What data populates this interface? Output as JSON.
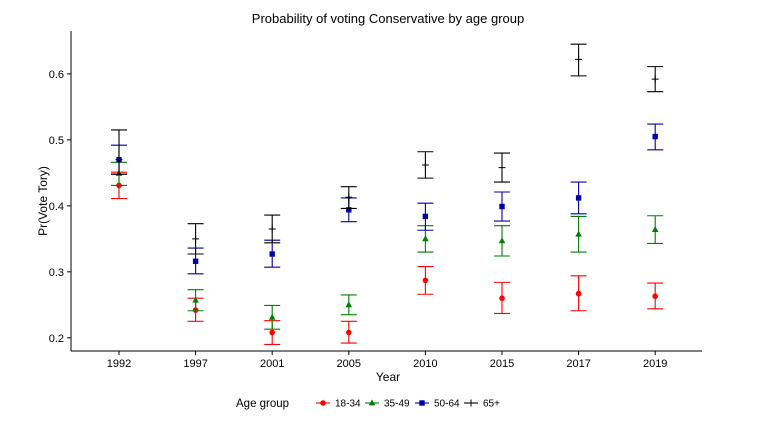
{
  "chart_data": {
    "type": "scatter",
    "title": "Probability of voting Conservative by age group",
    "xlabel": "Year",
    "ylabel": "Pr(Vote Tory)",
    "categories": [
      "1992",
      "1997",
      "2001",
      "2005",
      "2010",
      "2015",
      "2017",
      "2019"
    ],
    "ylim": [
      0.18,
      0.665
    ],
    "yticks": [
      0.2,
      0.3,
      0.4,
      0.5,
      0.6
    ],
    "ytick_labels": [
      "0.2",
      "0.3",
      "0.4",
      "0.5",
      "0.6"
    ],
    "grid": false,
    "legend_title": "Age group",
    "legend_position": "bottom",
    "series": [
      {
        "name": "18-34",
        "color": "#ff0000",
        "marker": "circle",
        "values": [
          0.431,
          0.242,
          0.208,
          0.208,
          0.287,
          0.26,
          0.267,
          0.263
        ],
        "lower": [
          0.411,
          0.225,
          0.19,
          0.192,
          0.266,
          0.237,
          0.241,
          0.244
        ],
        "upper": [
          0.451,
          0.26,
          0.226,
          0.225,
          0.308,
          0.284,
          0.294,
          0.283
        ]
      },
      {
        "name": "35-49",
        "color": "#007f00",
        "marker": "triangle",
        "values": [
          0.449,
          0.257,
          0.231,
          0.25,
          0.35,
          0.347,
          0.357,
          0.364
        ],
        "lower": [
          0.431,
          0.241,
          0.213,
          0.235,
          0.33,
          0.324,
          0.33,
          0.343
        ],
        "upper": [
          0.466,
          0.273,
          0.249,
          0.265,
          0.37,
          0.37,
          0.384,
          0.385
        ]
      },
      {
        "name": "50-64",
        "color": "#0000aa",
        "marker": "square",
        "values": [
          0.47,
          0.316,
          0.327,
          0.394,
          0.384,
          0.399,
          0.412,
          0.505
        ],
        "lower": [
          0.448,
          0.297,
          0.307,
          0.376,
          0.363,
          0.377,
          0.388,
          0.485
        ],
        "upper": [
          0.492,
          0.336,
          0.348,
          0.412,
          0.404,
          0.421,
          0.436,
          0.524
        ]
      },
      {
        "name": "65+",
        "color": "#000000",
        "marker": "cross",
        "values": [
          0.47,
          0.35,
          0.365,
          0.413,
          0.462,
          0.458,
          0.622,
          0.592
        ],
        "lower": [
          0.448,
          0.327,
          0.344,
          0.396,
          0.442,
          0.436,
          0.597,
          0.573
        ],
        "upper": [
          0.515,
          0.373,
          0.386,
          0.429,
          0.482,
          0.48,
          0.645,
          0.611
        ]
      }
    ]
  }
}
